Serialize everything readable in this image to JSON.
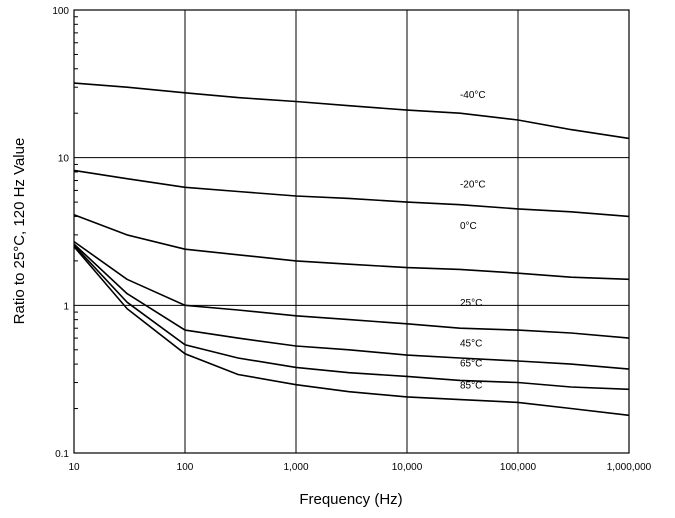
{
  "chart_data": {
    "type": "line",
    "title": "",
    "xlabel": "Frequency (Hz)",
    "ylabel": "Ratio to 25°C, 120 Hz Value",
    "xscale": "log",
    "yscale": "log",
    "xlim": [
      10,
      1000000
    ],
    "ylim": [
      0.1,
      100
    ],
    "grid": true,
    "x_ticks": [
      {
        "value": 10,
        "label": "10"
      },
      {
        "value": 100,
        "label": "100"
      },
      {
        "value": 1000,
        "label": "1,000"
      },
      {
        "value": 10000,
        "label": "10,000"
      },
      {
        "value": 100000,
        "label": "100,000"
      },
      {
        "value": 1000000,
        "label": "1,000,000"
      }
    ],
    "y_ticks": [
      {
        "value": 0.1,
        "label": "0.1"
      },
      {
        "value": 1,
        "label": "1"
      },
      {
        "value": 10,
        "label": "10"
      },
      {
        "value": 100,
        "label": "100"
      }
    ],
    "x": [
      10,
      30,
      100,
      300,
      1000,
      3000,
      10000,
      30000,
      100000,
      300000,
      1000000
    ],
    "series": [
      {
        "name": "-40°C",
        "label_at": [
          30000,
          27
        ],
        "values": [
          32,
          30,
          27.5,
          25.5,
          24,
          22.5,
          21,
          20,
          18,
          15.5,
          13.5
        ]
      },
      {
        "name": "-20°C",
        "label_at": [
          30000,
          6.7
        ],
        "values": [
          8.2,
          7.2,
          6.3,
          5.9,
          5.5,
          5.3,
          5.0,
          4.8,
          4.5,
          4.3,
          4.0
        ]
      },
      {
        "name": "0°C",
        "label_at": [
          30000,
          3.5
        ],
        "values": [
          4.1,
          3.0,
          2.4,
          2.2,
          2.0,
          1.9,
          1.8,
          1.75,
          1.65,
          1.55,
          1.5
        ]
      },
      {
        "name": "25°C",
        "label_at": [
          30000,
          1.05
        ],
        "values": [
          2.7,
          1.5,
          1.0,
          0.93,
          0.85,
          0.8,
          0.75,
          0.7,
          0.68,
          0.65,
          0.6
        ]
      },
      {
        "name": "45°C",
        "label_at": [
          30000,
          0.56
        ],
        "values": [
          2.6,
          1.2,
          0.68,
          0.6,
          0.53,
          0.5,
          0.46,
          0.44,
          0.42,
          0.4,
          0.37
        ]
      },
      {
        "name": "65°C",
        "label_at": [
          30000,
          0.41
        ],
        "values": [
          2.55,
          1.05,
          0.54,
          0.44,
          0.38,
          0.35,
          0.33,
          0.31,
          0.3,
          0.28,
          0.27
        ]
      },
      {
        "name": "85°C",
        "label_at": [
          30000,
          0.29
        ],
        "values": [
          2.5,
          0.95,
          0.47,
          0.34,
          0.29,
          0.26,
          0.24,
          0.23,
          0.22,
          0.2,
          0.18
        ]
      }
    ]
  }
}
